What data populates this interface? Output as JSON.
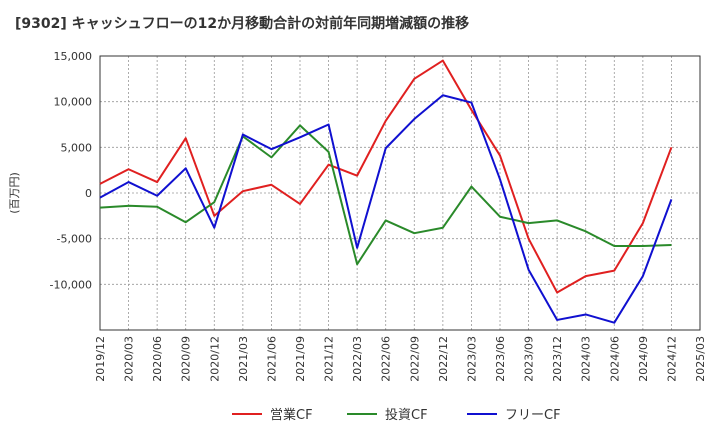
{
  "chart_data": {
    "type": "line",
    "title": "[9302]  キャッシュフローの12か月移動合計の対前年同期増減額の推移",
    "ylabel": "(百万円)",
    "xlabel": "",
    "ylim": [
      -15000,
      15000
    ],
    "yticks": [
      15000,
      10000,
      5000,
      0,
      -5000,
      -10000
    ],
    "ytick_labels": [
      "15,000",
      "10,000",
      "5,000",
      "0",
      "-5,000",
      "-10,000"
    ],
    "x": [
      "2019/12",
      "2020/03",
      "2020/06",
      "2020/09",
      "2020/12",
      "2021/03",
      "2021/06",
      "2021/09",
      "2021/12",
      "2022/03",
      "2022/06",
      "2022/09",
      "2022/12",
      "2023/03",
      "2023/06",
      "2023/09",
      "2023/12",
      "2024/03",
      "2024/06",
      "2024/09",
      "2024/12",
      "2025/03"
    ],
    "grid": true,
    "legend_position": "bottom",
    "series": [
      {
        "name": "営業CF",
        "color": "#e02020",
        "values": [
          1000,
          2600,
          1200,
          6000,
          -2500,
          200,
          900,
          -1200,
          3100,
          1900,
          7900,
          12500,
          14500,
          9100,
          4100,
          -5000,
          -10900,
          -9100,
          -8500,
          -3300,
          5000,
          null
        ]
      },
      {
        "name": "投資CF",
        "color": "#2a8a2a",
        "values": [
          -1600,
          -1400,
          -1500,
          -3200,
          -1000,
          6200,
          3900,
          7400,
          4500,
          -7800,
          -3000,
          -4400,
          -3800,
          700,
          -2600,
          -3300,
          -3000,
          -4200,
          -5800,
          -5800,
          -5700,
          null
        ]
      },
      {
        "name": "フリーCF",
        "color": "#1010d0",
        "values": [
          -500,
          1200,
          -300,
          2700,
          -3800,
          6400,
          4800,
          6100,
          7500,
          -6000,
          4900,
          8100,
          10700,
          9900,
          1500,
          -8400,
          -13900,
          -13300,
          -14200,
          -9100,
          -700,
          null
        ]
      }
    ]
  }
}
